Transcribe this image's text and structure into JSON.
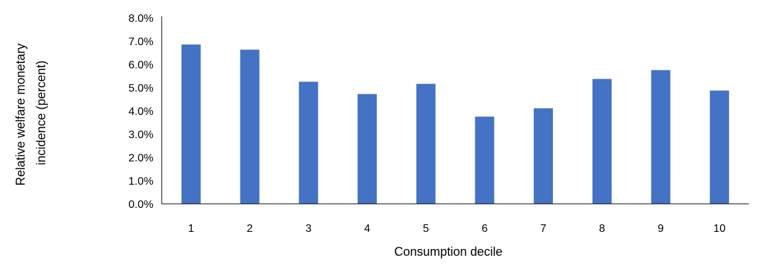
{
  "chart_data": {
    "type": "bar",
    "title": "",
    "xlabel": "Consumption decile",
    "ylabel_lines": [
      "Relative welfare monetary",
      "incidence (percent)"
    ],
    "categories": [
      "1",
      "2",
      "3",
      "4",
      "5",
      "6",
      "7",
      "8",
      "9",
      "10"
    ],
    "values": [
      0.0685,
      0.0663,
      0.0525,
      0.0472,
      0.0516,
      0.0375,
      0.0411,
      0.0537,
      0.0575,
      0.0487
    ],
    "ylim": [
      0,
      0.08
    ],
    "yticks": [
      0,
      0.01,
      0.02,
      0.03,
      0.04,
      0.05,
      0.06,
      0.07,
      0.08
    ],
    "ytick_labels": [
      "0.0%",
      "1.0%",
      "2.0%",
      "3.0%",
      "4.0%",
      "5.0%",
      "6.0%",
      "7.0%",
      "8.0%"
    ],
    "grid": false,
    "legend": "none",
    "bar_color": "#4472C4",
    "axis_color": "#000000"
  }
}
